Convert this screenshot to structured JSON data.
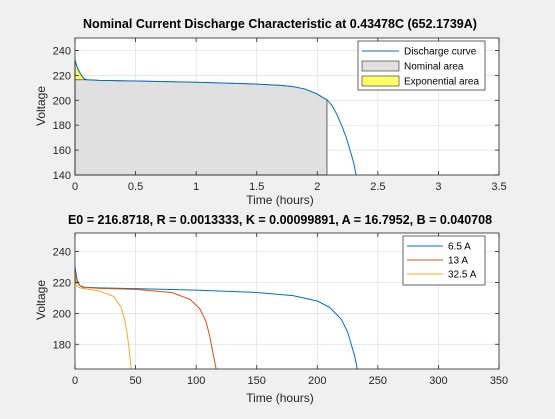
{
  "colors": {
    "background": "#f0f0f0",
    "axes_bg": "#ffffff",
    "grid": "#dfdfdf",
    "nominal_fill": "#e0e0e0",
    "exponential_fill": "#ffff66",
    "curve_blue": "#0072bd",
    "curve_orange": "#d95319",
    "curve_yellow": "#edb120"
  },
  "chart_data": [
    {
      "type": "area",
      "title": "Nominal Current Discharge Characteristic at 0.43478C (652.1739A)",
      "xlabel": "Time (hours)",
      "ylabel": "Voltage",
      "xlim": [
        0,
        3.5
      ],
      "ylim": [
        140,
        250
      ],
      "xticks": [
        0,
        0.5,
        1,
        1.5,
        2,
        2.5,
        3,
        3.5
      ],
      "xtick_labels": [
        "0",
        "0.5",
        "1",
        "1.5",
        "2",
        "2.5",
        "3",
        "3.5"
      ],
      "yticks": [
        140,
        160,
        180,
        200,
        220,
        240
      ],
      "ytick_labels": [
        "140",
        "160",
        "180",
        "200",
        "220",
        "240"
      ],
      "grid": true,
      "legend_position": "top-right",
      "series": [
        {
          "name": "Discharge curve",
          "color": "#0072bd",
          "x": [
            0,
            0.01,
            0.02,
            0.04,
            0.06,
            0.08,
            0.1,
            0.15,
            0.2,
            0.5,
            1.0,
            1.5,
            1.7,
            1.8,
            1.9,
            1.95,
            2.0,
            2.05,
            2.08,
            2.12,
            2.16,
            2.2,
            2.24,
            2.27,
            2.3,
            2.32
          ],
          "y": [
            232,
            229,
            226,
            222,
            219,
            217,
            216.5,
            216.3,
            216,
            215.5,
            214.5,
            213,
            212,
            211,
            209,
            207,
            205,
            202,
            200.4,
            196,
            189,
            180,
            170,
            160,
            150,
            140
          ]
        },
        {
          "name": "Nominal area",
          "color": "#e0e0e0",
          "x_range": [
            0,
            2.08
          ]
        },
        {
          "name": "Exponential area",
          "color": "#ffff66",
          "x_range": [
            0,
            0.12
          ]
        }
      ]
    },
    {
      "type": "line",
      "title": "E0 = 216.8718, R = 0.0013333, K = 0.00099891, A = 16.7952, B = 0.040708",
      "xlabel": "Time (hours)",
      "ylabel": "Voltage",
      "xlim": [
        0,
        350
      ],
      "ylim": [
        164,
        252
      ],
      "xticks": [
        0,
        50,
        100,
        150,
        200,
        250,
        300,
        350
      ],
      "xtick_labels": [
        "0",
        "50",
        "100",
        "150",
        "200",
        "250",
        "300",
        "350"
      ],
      "yticks": [
        180,
        200,
        220,
        240
      ],
      "ytick_labels": [
        "180",
        "200",
        "220",
        "240"
      ],
      "grid": true,
      "legend_position": "top-right",
      "series": [
        {
          "name": "6.5 A",
          "color": "#0072bd",
          "x": [
            0,
            1,
            2,
            4,
            6,
            10,
            20,
            50,
            100,
            150,
            180,
            200,
            210,
            220,
            225,
            228,
            231,
            233
          ],
          "y": [
            230,
            225,
            221,
            218,
            217,
            216.8,
            216.5,
            216,
            215,
            213.5,
            211.5,
            208,
            204,
            196,
            188,
            180,
            172,
            164
          ]
        },
        {
          "name": "13 A",
          "color": "#d95319",
          "x": [
            0,
            1,
            2,
            4,
            8,
            20,
            50,
            80,
            95,
            103,
            108,
            111,
            113,
            115,
            116.5
          ],
          "y": [
            228,
            223,
            220,
            218,
            216.8,
            216.2,
            215.5,
            213.5,
            209,
            203,
            195,
            186,
            178,
            170,
            164
          ]
        },
        {
          "name": "32.5 A",
          "color": "#edb120",
          "x": [
            0,
            1,
            2,
            4,
            10,
            20,
            32,
            38,
            41,
            43,
            44.5,
            45.5,
            46.4
          ],
          "y": [
            223,
            219,
            217.5,
            216.5,
            215.8,
            214.5,
            211,
            204,
            196,
            187,
            178,
            170,
            164
          ]
        }
      ]
    }
  ]
}
